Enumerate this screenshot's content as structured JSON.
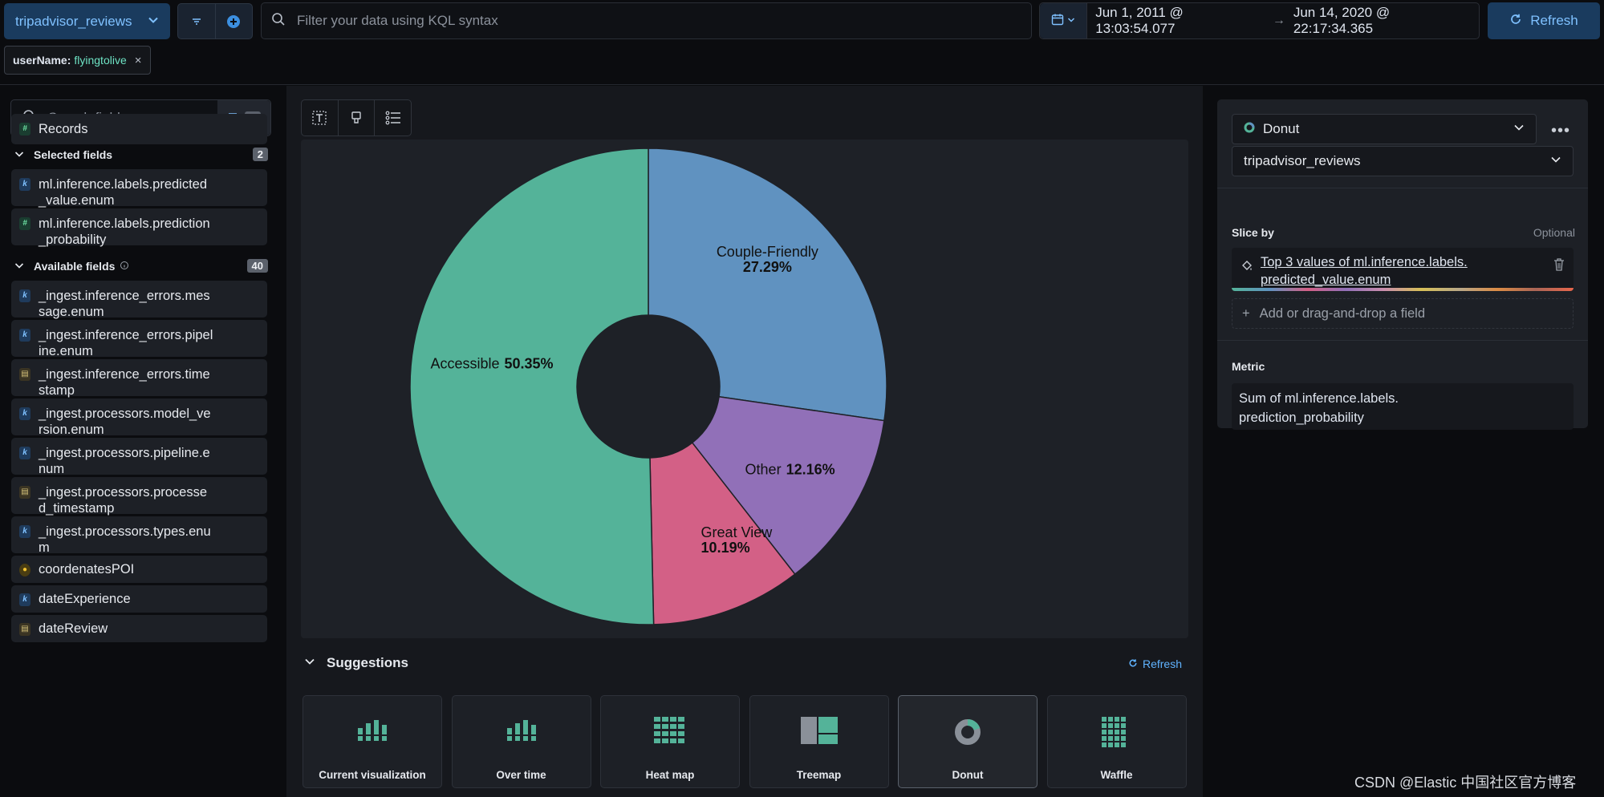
{
  "topbar": {
    "dataview": "tripadvisor_reviews",
    "kql_placeholder": "Filter your data using KQL syntax",
    "date_start": "Jun 1, 2011 @ 13:03:54.077",
    "date_end": "Jun 14, 2020 @ 22:17:34.365",
    "refresh_label": "Refresh",
    "filter_pill": {
      "field": "userName:",
      "value": "flyingtolive"
    }
  },
  "fields": {
    "search_placeholder": "Search field names",
    "filter_count": "0",
    "records": "Records",
    "selected_title": "Selected fields",
    "selected_count": "2",
    "selected": [
      {
        "line1": "ml.inference.labels.predicted",
        "line2": "_value.enum",
        "type": "k"
      },
      {
        "line1": "ml.inference.labels.prediction",
        "line2": "_probability",
        "type": "#"
      }
    ],
    "available_title": "Available fields",
    "available_count": "40",
    "available": [
      {
        "line1": "_ingest.inference_errors.mes",
        "line2": "sage.enum",
        "type": "k"
      },
      {
        "line1": "_ingest.inference_errors.pipel",
        "line2": "ine.enum",
        "type": "k"
      },
      {
        "line1": "_ingest.inference_errors.time",
        "line2": "stamp",
        "type": "date"
      },
      {
        "line1": "_ingest.processors.model_ve",
        "line2": "rsion.enum",
        "type": "k"
      },
      {
        "line1": "_ingest.processors.pipeline.e",
        "line2": "num",
        "type": "k"
      },
      {
        "line1": "_ingest.processors.processe",
        "line2": "d_timestamp",
        "type": "date"
      },
      {
        "line1": "_ingest.processors.types.enu",
        "line2": "m",
        "type": "k"
      },
      {
        "line1": "coordenatesPOI",
        "line2": "",
        "type": "geo"
      },
      {
        "line1": "dateExperience",
        "line2": "",
        "type": "k"
      },
      {
        "line1": "dateReview",
        "line2": "",
        "type": "date"
      }
    ]
  },
  "chart_data": {
    "type": "pie",
    "donut": true,
    "slices": [
      {
        "label": "Couple-Friendly",
        "value": 27.29,
        "pct": "27.29%",
        "color": "#6092c0"
      },
      {
        "label": "Other",
        "value": 12.16,
        "pct": "12.16%",
        "color": "#9170b8"
      },
      {
        "label": "Great View",
        "value": 10.19,
        "pct": "10.19%",
        "color": "#d36086"
      },
      {
        "label": "Accessible",
        "value": 50.35,
        "pct": "50.35%",
        "color": "#54b399"
      }
    ]
  },
  "suggestions": {
    "title": "Suggestions",
    "refresh": "Refresh",
    "cards": [
      {
        "label": "Current visualization",
        "icon": "bar-chart-icon"
      },
      {
        "label": "Over time",
        "icon": "bar-chart-icon"
      },
      {
        "label": "Heat map",
        "icon": "heatmap-icon"
      },
      {
        "label": "Treemap",
        "icon": "treemap-icon"
      },
      {
        "label": "Donut",
        "icon": "donut-icon"
      },
      {
        "label": "Waffle",
        "icon": "waffle-icon"
      }
    ],
    "selected_index": 4
  },
  "config": {
    "chart_type": "Donut",
    "dataview": "tripadvisor_reviews",
    "slice_by_label": "Slice by",
    "optional": "Optional",
    "slice_by_line1": "Top 3 values of ml.inference.labels.",
    "slice_by_line2": "predicted_value.enum",
    "add_field": "Add or drag-and-drop a field",
    "metric_label": "Metric",
    "metric_line1": "Sum of ml.inference.labels.",
    "metric_line2": "prediction_probability"
  },
  "watermark": "CSDN @Elastic 中国社区官方博客"
}
